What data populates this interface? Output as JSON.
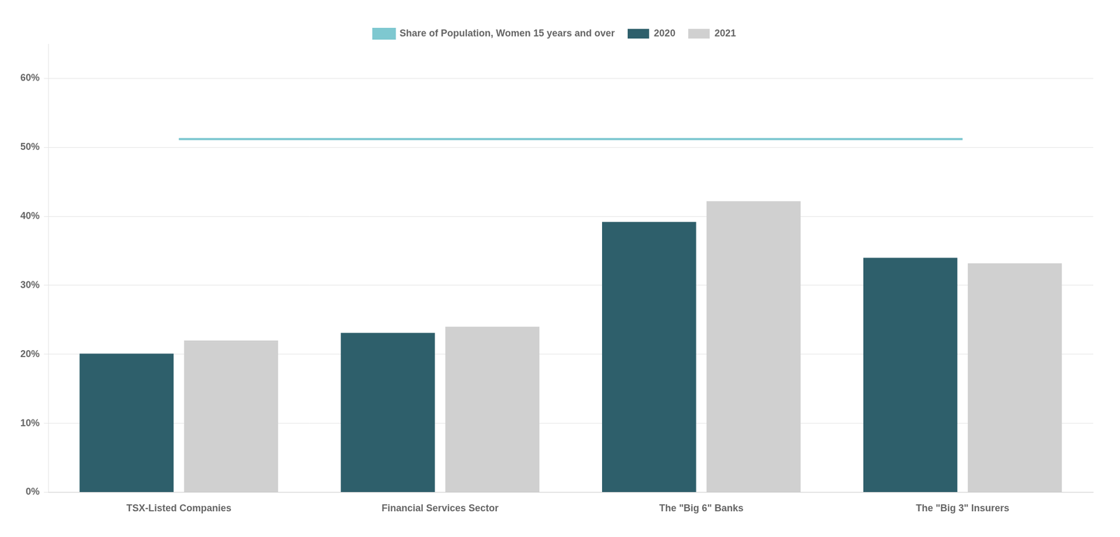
{
  "chart_data": {
    "type": "bar",
    "categories": [
      "TSX-Listed Companies",
      "Financial Services Sector",
      "The \"Big 6\" Banks",
      "The \"Big 3\" Insurers"
    ],
    "series": [
      {
        "name": "2020",
        "color": "#2e5f6b",
        "values": [
          0.201,
          0.231,
          0.392,
          0.34
        ]
      },
      {
        "name": "2021",
        "color": "#d0d0d0",
        "values": [
          0.22,
          0.24,
          0.422,
          0.332
        ]
      },
      {
        "name": "Share of Population, Women 15 years and over",
        "type": "line",
        "color": "#7ec8d0",
        "values": [
          0.512,
          0.512,
          0.512,
          0.512
        ]
      }
    ],
    "ylim": [
      0,
      0.65
    ],
    "yticks": [
      {
        "value": 0.0,
        "label": "0%"
      },
      {
        "value": 0.1,
        "label": "10%"
      },
      {
        "value": 0.2,
        "label": "20%"
      },
      {
        "value": 0.3,
        "label": "30%"
      },
      {
        "value": 0.4,
        "label": "40%"
      },
      {
        "value": 0.5,
        "label": "50%"
      },
      {
        "value": 0.6,
        "label": "60%"
      }
    ],
    "grid": true,
    "legend": "top"
  }
}
